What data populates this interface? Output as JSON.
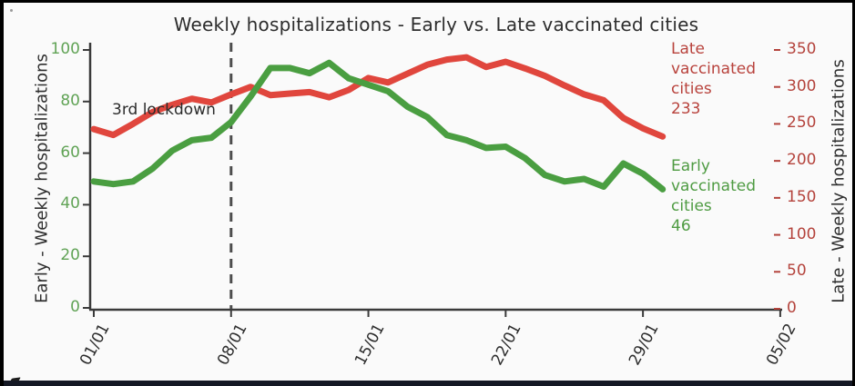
{
  "title": "Weekly hospitalizations - Early vs. Late vaccinated cities",
  "colors": {
    "early_line": "#4a9e41",
    "late_line": "#e0463d",
    "early_tick_text": "#61a356",
    "late_tick_text": "#b4433c",
    "early_annotation_text": "#4e9b42",
    "late_annotation_text": "#b8423c",
    "axis": "#3a3a3a",
    "dashed_line": "#4d4d4d",
    "title_text": "#2d2d2d"
  },
  "annotations": {
    "lockdown": "3rd lockdown",
    "late": [
      "Late",
      "vaccinated",
      "cities",
      "233"
    ],
    "early": [
      "Early",
      "vaccinated",
      "cities",
      "46"
    ]
  },
  "chart_data": {
    "type": "line",
    "title": "Weekly hospitalizations - Early vs. Late vaccinated cities",
    "x_unit": "days from 01/01, daily points",
    "x_tick_labels": [
      "01/01",
      "08/01",
      "15/01",
      "22/01",
      "29/01",
      "05/02"
    ],
    "x_tick_days": [
      0,
      7,
      14,
      21,
      28,
      35
    ],
    "x_range_days": [
      0,
      35
    ],
    "grid": false,
    "legend_position": "inline-end-labels",
    "left_axis": {
      "label": "Early - Weekly hospitalizations",
      "ticks": [
        0,
        20,
        40,
        60,
        80,
        100
      ],
      "range": [
        0,
        103
      ]
    },
    "right_axis": {
      "label": "Late - Weekly hospitalizations",
      "ticks": [
        0,
        50,
        100,
        150,
        200,
        250,
        300,
        350
      ],
      "range": [
        0,
        360
      ]
    },
    "vline": {
      "day": 7,
      "at_label": "08/01",
      "label": "3rd lockdown",
      "style": "dashed"
    },
    "series": [
      {
        "name": "Late vaccinated cities",
        "axis": "right",
        "color": "#e0463d",
        "final_value": 233,
        "days": [
          0,
          1,
          2,
          3,
          4,
          5,
          6,
          7,
          8,
          9,
          10,
          11,
          12,
          13,
          14,
          15,
          16,
          17,
          18,
          19,
          20,
          21,
          22,
          23,
          24,
          25,
          26,
          27,
          28,
          29
        ],
        "values": [
          243,
          235,
          250,
          266,
          276,
          284,
          279,
          290,
          300,
          289,
          291,
          293,
          286,
          296,
          312,
          306,
          318,
          330,
          337,
          340,
          327,
          334,
          325,
          315,
          302,
          290,
          282,
          258,
          244,
          233
        ]
      },
      {
        "name": "Early vaccinated cities",
        "axis": "left",
        "color": "#4a9e41",
        "final_value": 46,
        "days": [
          0,
          1,
          2,
          3,
          4,
          5,
          6,
          7,
          8,
          9,
          10,
          11,
          12,
          13,
          14,
          15,
          16,
          17,
          18,
          19,
          20,
          21,
          22,
          23,
          24,
          25,
          26,
          27,
          28,
          29
        ],
        "values": [
          49,
          48,
          49,
          54,
          61,
          65,
          66,
          72,
          82,
          93,
          93,
          91,
          95,
          89,
          86.5,
          84,
          78,
          74,
          67,
          65,
          62,
          62.5,
          58,
          51.5,
          49,
          50,
          47,
          56,
          52,
          46
        ]
      }
    ]
  }
}
